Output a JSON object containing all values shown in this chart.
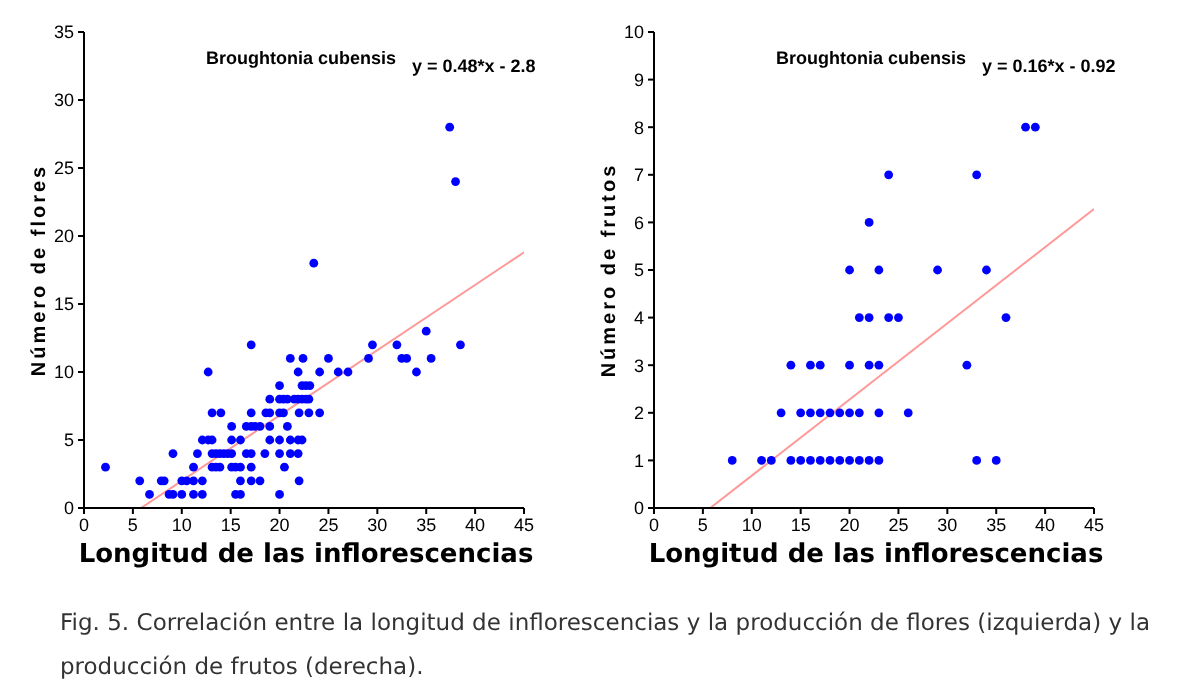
{
  "chart_data": [
    {
      "type": "scatter",
      "xlabel": "Longitud de las inflorescencias",
      "ylabel": "Número de flores",
      "xlim": [
        0,
        45
      ],
      "ylim": [
        0,
        35
      ],
      "xticks": [
        0,
        5,
        10,
        15,
        20,
        25,
        30,
        35,
        40,
        45
      ],
      "yticks": [
        0,
        5,
        10,
        15,
        20,
        25,
        30,
        35
      ],
      "annotations": [
        "Broughtonia cubensis",
        "y = 0.48*x - 2.8",
        "Fig. 5. Correlación entre la longitud de inflorescencias y la producción de flores (izquierda) y la producción de frutos (derecha)."
      ],
      "series": [
        {
          "marker": "circle",
          "color": "#0000ff",
          "x": [
            2.2,
            5.7,
            6.7,
            7.9,
            8.2,
            8.7,
            9.1,
            9.1,
            10,
            10.5,
            10,
            11.2,
            11.2,
            11.2,
            11.6,
            12.1,
            12.1,
            12.1,
            12.7,
            12.7,
            13.1,
            13.1,
            13.1,
            13.1,
            13.5,
            13.9,
            13.5,
            13.9,
            14,
            14.3,
            14.7,
            15.1,
            15.1,
            15.1,
            15.1,
            15.5,
            16,
            15.5,
            16,
            16,
            16,
            16.6,
            16.6,
            17.1,
            17.1,
            17.1,
            17.1,
            17.1,
            17.1,
            17.5,
            18,
            18,
            18.5,
            18.6,
            19,
            19,
            19,
            19,
            20,
            20,
            20,
            20,
            20,
            20,
            20.4,
            20.8,
            20.4,
            20.5,
            20.8,
            21.1,
            21.1,
            21.1,
            21.5,
            21.9,
            22.3,
            22.7,
            21.9,
            21.9,
            22.3,
            21.9,
            22,
            22,
            22.3,
            22.7,
            23.1,
            22.4,
            23,
            23,
            23.5,
            24.1,
            24.1,
            25,
            26,
            27,
            29.1,
            29.5,
            32,
            32.5,
            33,
            34,
            35,
            35.5,
            37.4,
            38,
            38.5
          ],
          "values": [
            3,
            2,
            1,
            2,
            2,
            1,
            1,
            4,
            1,
            2,
            2,
            3,
            2,
            1,
            4,
            5,
            2,
            1,
            10,
            5,
            5,
            7,
            4,
            3,
            4,
            4,
            3,
            3,
            7,
            4,
            4,
            6,
            5,
            4,
            3,
            3,
            3,
            1,
            1,
            5,
            2,
            6,
            4,
            12,
            7,
            6,
            4,
            3,
            2,
            6,
            6,
            2,
            4,
            7,
            7,
            6,
            5,
            8,
            9,
            8,
            7,
            5,
            4,
            1,
            8,
            8,
            7,
            3,
            6,
            11,
            4,
            5,
            8,
            8,
            8,
            8,
            10,
            5,
            5,
            4,
            2,
            7,
            9,
            9,
            9,
            11,
            8,
            7,
            18,
            10,
            7,
            11,
            10,
            10,
            11,
            12,
            12,
            11,
            11,
            10,
            13,
            11,
            28,
            24,
            12
          ]
        },
        {
          "type": "line",
          "marker": "none",
          "color": "#ff9999",
          "x": [
            5.83,
            45
          ],
          "values": [
            0,
            18.8
          ]
        }
      ]
    },
    {
      "type": "scatter",
      "xlabel": "Longitud de las inflorescencias",
      "ylabel": "Número de frutos",
      "xlim": [
        0,
        45
      ],
      "ylim": [
        0,
        10
      ],
      "xticks": [
        0,
        5,
        10,
        15,
        20,
        25,
        30,
        35,
        40,
        45
      ],
      "yticks": [
        0,
        1,
        2,
        3,
        4,
        5,
        6,
        7,
        8,
        9,
        10
      ],
      "annotations": [
        "Broughtonia cubensis",
        "y = 0.16*x - 0.92"
      ],
      "series": [
        {
          "marker": "circle",
          "color": "#0000ff",
          "x": [
            8,
            11,
            12,
            14,
            15,
            16,
            17,
            18,
            19,
            20,
            21,
            22,
            23,
            33,
            35,
            13,
            15,
            16,
            17,
            18,
            19,
            20,
            21,
            23,
            26,
            14,
            16,
            17,
            20,
            22,
            23,
            32,
            21,
            22,
            24,
            25,
            36,
            20,
            23,
            29,
            34,
            22,
            24,
            33,
            38,
            39
          ],
          "values": [
            1,
            1,
            1,
            1,
            1,
            1,
            1,
            1,
            1,
            1,
            1,
            1,
            1,
            1,
            1,
            2,
            2,
            2,
            2,
            2,
            2,
            2,
            2,
            2,
            2,
            3,
            3,
            3,
            3,
            3,
            3,
            3,
            4,
            4,
            4,
            4,
            4,
            5,
            5,
            5,
            5,
            6,
            7,
            7,
            8,
            8
          ]
        },
        {
          "type": "line",
          "marker": "none",
          "color": "#ff9999",
          "x": [
            5.75,
            45
          ],
          "values": [
            0,
            6.28
          ]
        }
      ]
    }
  ]
}
